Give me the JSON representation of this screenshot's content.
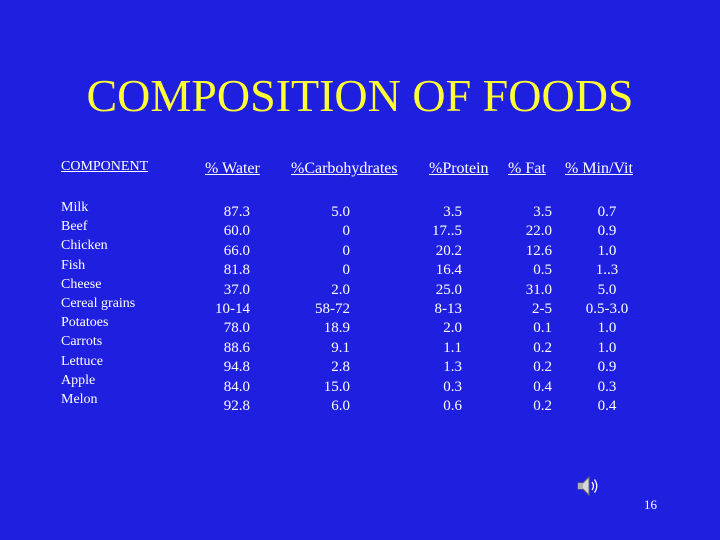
{
  "title": "COMPOSITION OF FOODS",
  "component_header": "COMPONENT",
  "headers": {
    "water": "% Water",
    "carbs": "%Carbohydrates",
    "protein": "%Protein",
    "fat": "% Fat",
    "minvit": "% Min/Vit"
  },
  "rows": [
    {
      "name": "Milk",
      "water": "87.3",
      "carbs": "5.0",
      "protein": "3.5",
      "fat": "3.5",
      "minvit": "0.7"
    },
    {
      "name": "Beef",
      "water": "60.0",
      "carbs": "0",
      "protein": "17..5",
      "fat": "22.0",
      "minvit": "0.9"
    },
    {
      "name": "Chicken",
      "water": "66.0",
      "carbs": "0",
      "protein": "20.2",
      "fat": "12.6",
      "minvit": "1.0"
    },
    {
      "name": "Fish",
      "water": "81.8",
      "carbs": "0",
      "protein": "16.4",
      "fat": "0.5",
      "minvit": "1..3"
    },
    {
      "name": "Cheese",
      "water": "37.0",
      "carbs": "2.0",
      "protein": "25.0",
      "fat": "31.0",
      "minvit": "5.0"
    },
    {
      "name": "Cereal grains",
      "water": "10-14",
      "carbs": "58-72",
      "protein": "8-13",
      "fat": "2-5",
      "minvit": "0.5-3.0"
    },
    {
      "name": "Potatoes",
      "water": "78.0",
      "carbs": "18.9",
      "protein": "2.0",
      "fat": "0.1",
      "minvit": "1.0"
    },
    {
      "name": "Carrots",
      "water": "88.6",
      "carbs": "9.1",
      "protein": "1.1",
      "fat": "0.2",
      "minvit": "1.0"
    },
    {
      "name": "Lettuce",
      "water": "94.8",
      "carbs": "2.8",
      "protein": "1.3",
      "fat": "0.2",
      "minvit": "0.9"
    },
    {
      "name": "Apple",
      "water": "84.0",
      "carbs": "15.0",
      "protein": "0.3",
      "fat": "0.4",
      "minvit": "0.3"
    },
    {
      "name": "Melon",
      "water": "92.8",
      "carbs": "6.0",
      "protein": "0.6",
      "fat": "0.2",
      "minvit": "0.4"
    }
  ],
  "speaker_icon": "speaker-icon",
  "page_number": "16"
}
